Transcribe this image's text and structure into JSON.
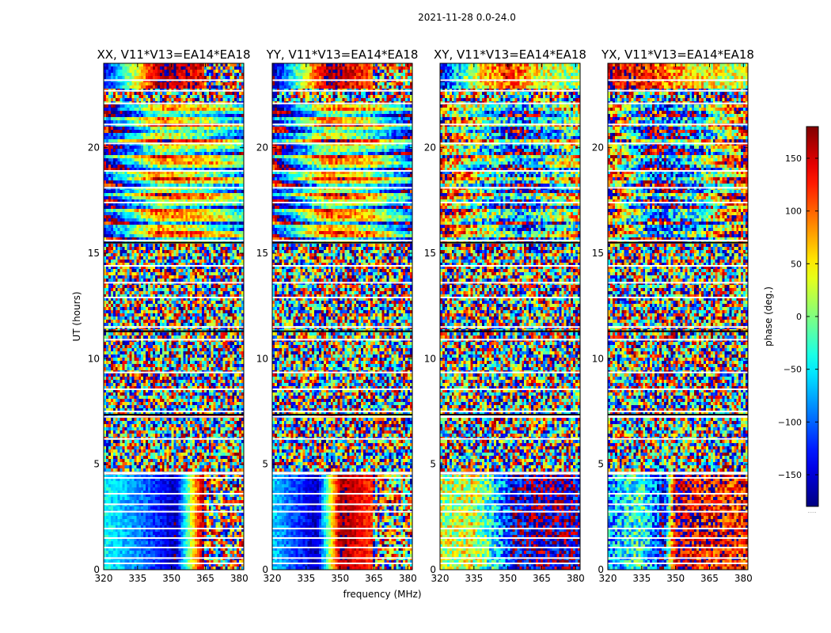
{
  "chart_data": {
    "type": "heatmap",
    "suptitle": "2021-11-28 0.0-24.0",
    "xlabel": "frequency (MHz)",
    "ylabel": "UT (hours)",
    "xlim": [
      320,
      382
    ],
    "ylim": [
      0,
      24
    ],
    "xticks": [
      320,
      335,
      350,
      365,
      380
    ],
    "yticks": [
      0,
      5,
      10,
      15,
      20
    ],
    "colorbar": {
      "label": "phase (deg.)",
      "range": [
        -180,
        180
      ],
      "ticks": [
        150,
        100,
        50,
        0,
        -50,
        -100,
        -150
      ],
      "tick_labels": [
        "150",
        "100",
        "50",
        "0",
        "−50",
        "−100",
        "−150"
      ],
      "colormap": "jet",
      "footnote": "....."
    },
    "panels": [
      {
        "title": "XX, V11*V13=EA14*EA18",
        "segments": [
          {
            "t0": 0.0,
            "t1": 4.5,
            "kind": "smooth",
            "f": [
              320,
              336,
              352,
              364,
              382
            ],
            "phase": [
              -40,
              -90,
              -160,
              170,
              140
            ],
            "noise": 25,
            "noisy_from": 364
          },
          {
            "t0": 4.5,
            "t1": 7.2,
            "kind": "noise"
          },
          {
            "t0": 7.2,
            "t1": 7.4,
            "kind": "smooth",
            "f": [
              320,
              340,
              360,
              382
            ],
            "phase": [
              -150,
              180,
              150,
              140
            ],
            "noise": 30
          },
          {
            "t0": 7.4,
            "t1": 15.5,
            "kind": "noise"
          },
          {
            "t0": 15.5,
            "t1": 22.0,
            "kind": "bands",
            "f": [
              320,
              345,
              365,
              382
            ],
            "phase": [
              -170,
              60,
              20,
              -60
            ],
            "noise": 45
          },
          {
            "t0": 22.0,
            "t1": 22.8,
            "kind": "noise"
          },
          {
            "t0": 22.8,
            "t1": 24.0,
            "kind": "smooth",
            "f": [
              320,
              345,
              364,
              382
            ],
            "phase": [
              -150,
              175,
              140,
              120
            ],
            "noise": 40,
            "noisy_from": 364
          }
        ]
      },
      {
        "title": "YY, V11*V13=EA14*EA18",
        "segments": [
          {
            "t0": 0.0,
            "t1": 4.5,
            "kind": "smooth",
            "f": [
              320,
              340,
              350,
              364,
              382
            ],
            "phase": [
              -60,
              -160,
              170,
              120,
              40
            ],
            "noise": 25,
            "noisy_from": 364
          },
          {
            "t0": 4.5,
            "t1": 7.2,
            "kind": "noise"
          },
          {
            "t0": 7.2,
            "t1": 7.4,
            "kind": "smooth",
            "f": [
              320,
              345,
              365,
              382
            ],
            "phase": [
              -160,
              160,
              30,
              10
            ],
            "noise": 30
          },
          {
            "t0": 7.4,
            "t1": 15.5,
            "kind": "noise"
          },
          {
            "t0": 15.5,
            "t1": 22.0,
            "kind": "bands",
            "f": [
              320,
              345,
              365,
              382
            ],
            "phase": [
              -175,
              70,
              10,
              -120
            ],
            "noise": 45
          },
          {
            "t0": 22.0,
            "t1": 22.8,
            "kind": "noise"
          },
          {
            "t0": 22.8,
            "t1": 24.0,
            "kind": "smooth",
            "f": [
              320,
              345,
              364,
              382
            ],
            "phase": [
              -170,
              175,
              110,
              40
            ],
            "noise": 40,
            "noisy_from": 364
          }
        ]
      },
      {
        "title": "XY, V11*V13=EA14*EA18",
        "segments": [
          {
            "t0": 0.0,
            "t1": 4.5,
            "kind": "smooth",
            "f": [
              320,
              335,
              345,
              352,
              365,
              382
            ],
            "phase": [
              20,
              30,
              -60,
              -140,
              -170,
              -150
            ],
            "noise": 70
          },
          {
            "t0": 4.5,
            "t1": 7.2,
            "kind": "noise"
          },
          {
            "t0": 7.4,
            "t1": 15.5,
            "kind": "noise"
          },
          {
            "t0": 15.5,
            "t1": 22.0,
            "kind": "bands",
            "f": [
              320,
              340,
              355,
              382
            ],
            "phase": [
              120,
              -20,
              -120,
              40
            ],
            "noise": 90
          },
          {
            "t0": 22.0,
            "t1": 22.8,
            "kind": "noise"
          },
          {
            "t0": 22.8,
            "t1": 24.0,
            "kind": "smooth",
            "f": [
              320,
              335,
              350,
              364,
              382
            ],
            "phase": [
              -150,
              30,
              120,
              40,
              0
            ],
            "noise": 60
          }
        ]
      },
      {
        "title": "YX, V11*V13=EA14*EA18",
        "segments": [
          {
            "t0": 0.0,
            "t1": 4.5,
            "kind": "smooth",
            "f": [
              320,
              335,
              345,
              350,
              360,
              382
            ],
            "phase": [
              -80,
              -20,
              -150,
              175,
              140,
              130
            ],
            "noise": 70
          },
          {
            "t0": 4.5,
            "t1": 7.2,
            "kind": "noise"
          },
          {
            "t0": 7.4,
            "t1": 15.5,
            "kind": "noise"
          },
          {
            "t0": 15.5,
            "t1": 22.0,
            "kind": "bands",
            "f": [
              320,
              340,
              360,
              382
            ],
            "phase": [
              150,
              -160,
              -60,
              150
            ],
            "noise": 90
          },
          {
            "t0": 22.0,
            "t1": 22.8,
            "kind": "noise"
          },
          {
            "t0": 22.8,
            "t1": 24.0,
            "kind": "smooth",
            "f": [
              320,
              340,
              355,
              382
            ],
            "phase": [
              150,
              120,
              60,
              20
            ],
            "noise": 60
          }
        ]
      }
    ],
    "flagged_hours": [
      0.3,
      0.55,
      1.05,
      1.5,
      1.95,
      2.75,
      3.1,
      3.6,
      4.35,
      4.55,
      4.6,
      6.2,
      7.25,
      7.5,
      8.55,
      9.35,
      10.9,
      11.5,
      12.9,
      13.6,
      14.4,
      15.5,
      15.6,
      17.4,
      18.1,
      18.9,
      20.2,
      21.1,
      22.1,
      22.7,
      23.2
    ]
  }
}
